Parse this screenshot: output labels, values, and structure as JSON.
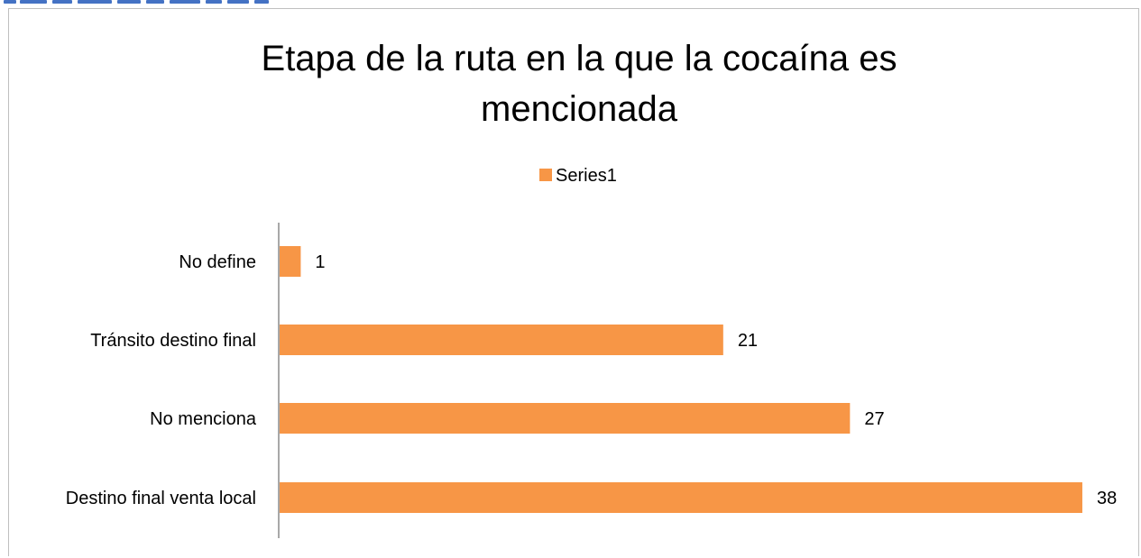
{
  "chart_data": {
    "type": "bar",
    "orientation": "horizontal",
    "title": "Etapa de la ruta en la que la cocaína es mencionada",
    "title_lines": [
      "Etapa de la ruta en la que la cocaína es",
      "mencionada"
    ],
    "categories": [
      "No define",
      "Tránsito destino final",
      "No menciona",
      "Destino final venta local"
    ],
    "series": [
      {
        "name": "Series1",
        "values": [
          1,
          21,
          27,
          38
        ],
        "color": "#f79646"
      }
    ],
    "xlim": [
      0,
      38
    ],
    "legend_position": "top",
    "grid": false,
    "data_labels": true
  }
}
